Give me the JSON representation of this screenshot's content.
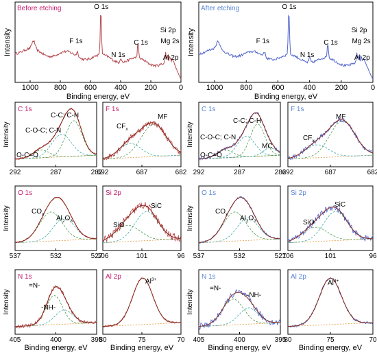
{
  "colors": {
    "before": "#b5474d",
    "after": "#4f63cc",
    "label_before": "#c4206f",
    "label_after": "#5a86d6"
  },
  "chart_data": [
    {
      "id": "before-survey",
      "type": "line",
      "title": "Before etching",
      "xlabel": "Binding energy, eV",
      "ylabel": "Intensity",
      "xlim": [
        1100,
        0
      ],
      "xticks": [
        1000,
        800,
        600,
        400,
        200,
        0
      ],
      "peaks": [
        {
          "label": "O 1s",
          "x": 531
        },
        {
          "label": "F 1s",
          "x": 686
        },
        {
          "label": "N 1s",
          "x": 399
        },
        {
          "label": "C 1s",
          "x": 285
        },
        {
          "label": "Si 2p",
          "x": 101
        },
        {
          "label": "Mg 2s",
          "x": 89
        },
        {
          "label": "Al 2p",
          "x": 74
        }
      ]
    },
    {
      "id": "after-survey",
      "type": "line",
      "title": "After etching",
      "xlabel": "Binding energy, eV",
      "ylabel": "Intensity",
      "xlim": [
        1100,
        0
      ],
      "xticks": [
        1000,
        800,
        600,
        400,
        200,
        0
      ],
      "peaks": [
        {
          "label": "O 1s",
          "x": 531
        },
        {
          "label": "F 1s",
          "x": 686
        },
        {
          "label": "N 1s",
          "x": 399
        },
        {
          "label": "C 1s",
          "x": 285
        },
        {
          "label": "Si 2p",
          "x": 101
        },
        {
          "label": "Mg 2s",
          "x": 89
        },
        {
          "label": "Al 2p",
          "x": 74
        }
      ]
    },
    {
      "id": "before-c1s",
      "type": "line",
      "title": "C 1s",
      "ylabel": "Intensity",
      "xlim": [
        292,
        282
      ],
      "xticks": [
        292,
        287,
        282
      ],
      "components": [
        {
          "label": "C-C; C-H",
          "x": 284.8
        },
        {
          "label": "C-O-C; C-N",
          "x": 286.3
        },
        {
          "label": "O-C=O",
          "x": 288.8
        }
      ]
    },
    {
      "id": "before-f1s",
      "type": "line",
      "title": "F 1s",
      "xlim": [
        692,
        682
      ],
      "xticks": [
        692,
        687,
        682
      ],
      "components": [
        {
          "label": "MF",
          "x": 685.5
        },
        {
          "label": "CFx",
          "x": 688.5
        }
      ]
    },
    {
      "id": "after-c1s",
      "type": "line",
      "title": "C 1s",
      "ylabel": "Intensity",
      "xlim": [
        292,
        282
      ],
      "xticks": [
        292,
        287,
        282
      ],
      "components": [
        {
          "label": "C-C; C-H",
          "x": 284.8
        },
        {
          "label": "C-O-C; C-N",
          "x": 286.2
        },
        {
          "label": "O-C=O",
          "x": 288.8
        },
        {
          "label": "MC",
          "x": 283.3
        }
      ]
    },
    {
      "id": "after-f1s",
      "type": "line",
      "title": "F 1s",
      "xlim": [
        692,
        682
      ],
      "xticks": [
        692,
        687,
        682
      ],
      "components": [
        {
          "label": "MF",
          "x": 685.6
        },
        {
          "label": "CFx",
          "x": 688.6
        }
      ]
    },
    {
      "id": "before-o1s",
      "type": "line",
      "title": "O 1s",
      "ylabel": "Intensity",
      "xlim": [
        537,
        527
      ],
      "xticks": [
        537,
        532,
        527
      ],
      "components": [
        {
          "label": "COx",
          "x": 532.6
        },
        {
          "label": "Al2O3",
          "x": 531.0
        }
      ]
    },
    {
      "id": "before-si2p",
      "type": "line",
      "title": "Si 2p",
      "xlim": [
        106,
        96
      ],
      "xticks": [
        106,
        101,
        96
      ],
      "components": [
        {
          "label": "SiO",
          "x": 102.8
        },
        {
          "label": "SiC",
          "x": 100.4
        }
      ]
    },
    {
      "id": "after-o1s",
      "type": "line",
      "title": "O 1s",
      "ylabel": "Intensity",
      "xlim": [
        537,
        527
      ],
      "xticks": [
        537,
        532,
        527
      ],
      "components": [
        {
          "label": "COx",
          "x": 532.6
        },
        {
          "label": "Al2O3",
          "x": 531.0
        }
      ]
    },
    {
      "id": "after-si2p",
      "type": "line",
      "title": "Si 2p",
      "xlim": [
        106,
        96
      ],
      "xticks": [
        106,
        101,
        96
      ],
      "components": [
        {
          "label": "SiO",
          "x": 102.8
        },
        {
          "label": "SiC",
          "x": 100.4
        }
      ]
    },
    {
      "id": "before-n1s",
      "type": "line",
      "title": "N 1s",
      "xlabel": "Binding energy, eV",
      "ylabel": "Intensity",
      "xlim": [
        405,
        395
      ],
      "xticks": [
        405,
        400,
        395
      ],
      "components": [
        {
          "label": "=N-",
          "x": 400.2
        },
        {
          "label": "-NH-",
          "x": 399.0
        }
      ]
    },
    {
      "id": "before-al2p",
      "type": "line",
      "title": "Al 2p",
      "xlabel": "Binding energy, eV",
      "xlim": [
        80,
        70
      ],
      "xticks": [
        80,
        75,
        70
      ],
      "components": [
        {
          "label": "Al3+",
          "x": 74.9
        }
      ]
    },
    {
      "id": "after-n1s",
      "type": "line",
      "title": "N 1s",
      "xlabel": "Binding energy, eV",
      "ylabel": "Intensity",
      "xlim": [
        405,
        395
      ],
      "xticks": [
        405,
        400,
        395
      ],
      "components": [
        {
          "label": "=N-",
          "x": 400.8
        },
        {
          "label": "-NH-",
          "x": 398.9
        }
      ]
    },
    {
      "id": "after-al2p",
      "type": "line",
      "title": "Al 2p",
      "xlabel": "Binding energy, eV",
      "xlim": [
        80,
        70
      ],
      "xticks": [
        80,
        75,
        70
      ],
      "components": [
        {
          "label": "Al3+",
          "x": 75.0
        }
      ]
    }
  ]
}
